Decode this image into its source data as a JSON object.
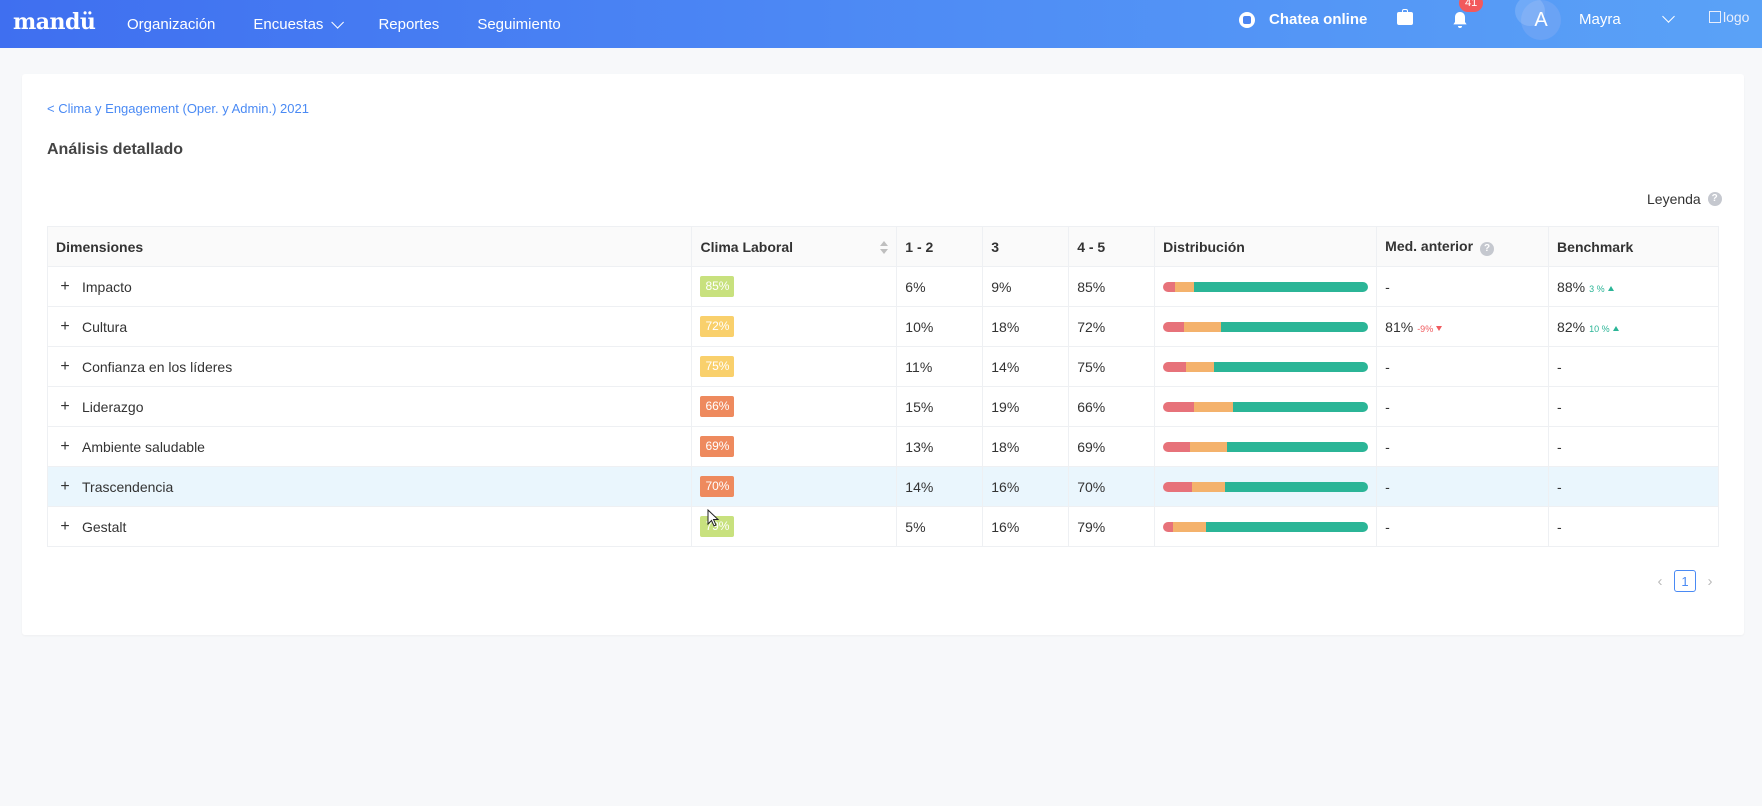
{
  "header": {
    "logo": "mandü",
    "nav": [
      {
        "label": "Organización"
      },
      {
        "label": "Encuestas"
      },
      {
        "label": "Reportes"
      },
      {
        "label": "Seguimiento"
      }
    ],
    "chat_label": "Chatea online",
    "notification_count": "41",
    "avatar_letter": "A",
    "user_name": "Mayra",
    "brand_alt": "logo"
  },
  "breadcrumb": "< Clima y Engagement (Oper. y Admin.) 2021",
  "page_title": "Análisis detallado",
  "legend_label": "Leyenda",
  "table": {
    "columns": [
      "Dimensiones",
      "Clima Laboral",
      "1 - 2",
      "3",
      "4 - 5",
      "Distribución",
      "Med. anterior",
      "Benchmark"
    ],
    "rows": [
      {
        "name": "Impacto",
        "clima": "85%",
        "clima_color": "#c8e17e",
        "low": "6%",
        "mid": "9%",
        "high": "85%",
        "dist": [
          6,
          9,
          85
        ],
        "prev": "-",
        "prev_delta": "",
        "prev_dir": "",
        "bench": "88%",
        "bench_delta": "3 %",
        "bench_dir": "up"
      },
      {
        "name": "Cultura",
        "clima": "72%",
        "clima_color": "#f9d06c",
        "low": "10%",
        "mid": "18%",
        "high": "72%",
        "dist": [
          10,
          18,
          72
        ],
        "prev": "81%",
        "prev_delta": "-9%",
        "prev_dir": "down",
        "bench": "82%",
        "bench_delta": "10 %",
        "bench_dir": "up"
      },
      {
        "name": "Confianza en los líderes",
        "clima": "75%",
        "clima_color": "#f9d06c",
        "low": "11%",
        "mid": "14%",
        "high": "75%",
        "dist": [
          11,
          14,
          75
        ],
        "prev": "-",
        "prev_delta": "",
        "prev_dir": "",
        "bench": "-",
        "bench_delta": "",
        "bench_dir": ""
      },
      {
        "name": "Liderazgo",
        "clima": "66%",
        "clima_color": "#ee8a5e",
        "low": "15%",
        "mid": "19%",
        "high": "66%",
        "dist": [
          15,
          19,
          66
        ],
        "prev": "-",
        "prev_delta": "",
        "prev_dir": "",
        "bench": "-",
        "bench_delta": "",
        "bench_dir": ""
      },
      {
        "name": "Ambiente saludable",
        "clima": "69%",
        "clima_color": "#ee8a5e",
        "low": "13%",
        "mid": "18%",
        "high": "69%",
        "dist": [
          13,
          18,
          69
        ],
        "prev": "-",
        "prev_delta": "",
        "prev_dir": "",
        "bench": "-",
        "bench_delta": "",
        "bench_dir": ""
      },
      {
        "name": "Trascendencia",
        "clima": "70%",
        "clima_color": "#ee8a5e",
        "low": "14%",
        "mid": "16%",
        "high": "70%",
        "dist": [
          14,
          16,
          70
        ],
        "prev": "-",
        "prev_delta": "",
        "prev_dir": "",
        "bench": "-",
        "bench_delta": "",
        "bench_dir": ""
      },
      {
        "name": "Gestalt",
        "clima": "79%",
        "clima_color": "#c8e17e",
        "low": "5%",
        "mid": "16%",
        "high": "79%",
        "dist": [
          5,
          16,
          79
        ],
        "prev": "-",
        "prev_delta": "",
        "prev_dir": "",
        "bench": "-",
        "bench_delta": "",
        "bench_dir": ""
      }
    ],
    "dist_colors": [
      "#e7727a",
      "#f4b26c",
      "#2bb597"
    ],
    "highlight_row": 5
  },
  "pagination": {
    "current": "1"
  }
}
